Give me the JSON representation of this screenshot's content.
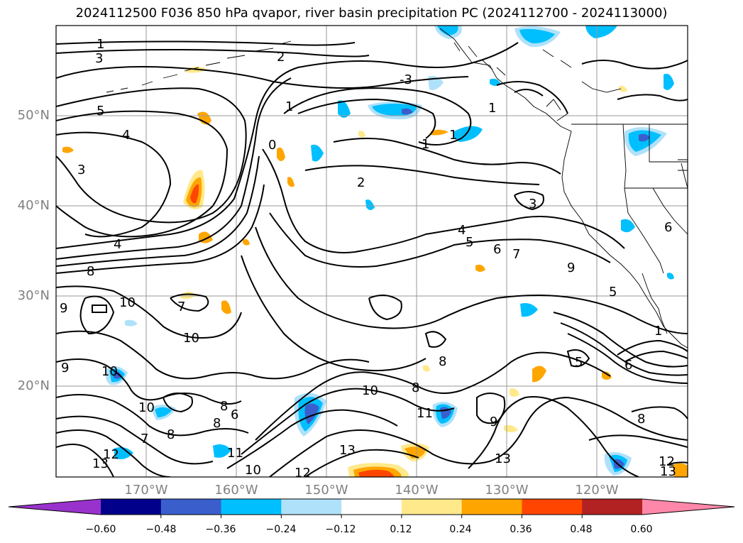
{
  "title": "2024112500 F036 850 hPa qvapor, river basin precipitation PC (2024112700 - 2024113000)",
  "lat_labels": [
    "50°N",
    "40°N",
    "30°N",
    "20°N"
  ],
  "lon_labels": [
    "170°W",
    "160°W",
    "150°W",
    "140°W",
    "130°W",
    "120°W"
  ],
  "contour_labels": [
    "1",
    "3",
    "2",
    "-3",
    "5",
    "4",
    "1",
    "0",
    "1",
    "1",
    "1",
    "3",
    "2",
    "3",
    "4",
    "5",
    "6",
    "7",
    "8",
    "9",
    "4",
    "10",
    "7",
    "10",
    "9",
    "10",
    "9",
    "10",
    "8",
    "8",
    "6",
    "7",
    "8",
    "10",
    "11",
    "13",
    "12",
    "13",
    "10",
    "12",
    "11",
    "9",
    "13",
    "8",
    "5",
    "6",
    "12",
    "13",
    "5",
    "6",
    "1"
  ],
  "colorbar": {
    "ticks": [
      "−0.60",
      "−0.48",
      "−0.36",
      "−0.24",
      "−0.12",
      "0.12",
      "0.24",
      "0.36",
      "0.48",
      "0.60"
    ],
    "colors": [
      "#9932cc",
      "#00008b",
      "#3a5fcd",
      "#00bfff",
      "#afe1fa",
      "#ffffff",
      "#ffe98a",
      "#ffa500",
      "#ff4500",
      "#b22222",
      "#ff88aa"
    ]
  }
}
